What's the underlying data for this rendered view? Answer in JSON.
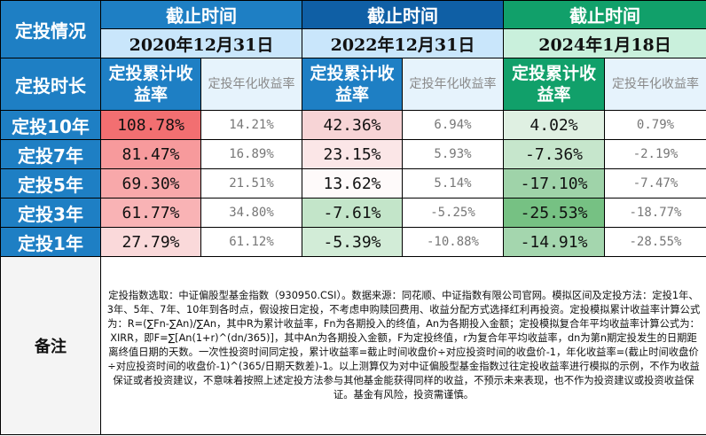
{
  "header": {
    "corner_label": "定投情况",
    "period_label": "截止时间",
    "dates": [
      "2020年12月31日",
      "2022年12月31日",
      "2024年1月18日"
    ]
  },
  "metrics": {
    "row_label": "定投时长",
    "cumulative": "定投累计收益率",
    "annualized": "定投年化收益率"
  },
  "rows": [
    {
      "label": "定投10年",
      "values": [
        "108.78%",
        "14.21%",
        "42.36%",
        "6.94%",
        "4.02%",
        "0.79%"
      ]
    },
    {
      "label": "定投7年",
      "values": [
        "81.47%",
        "16.89%",
        "23.15%",
        "5.93%",
        "-7.36%",
        "-2.19%"
      ]
    },
    {
      "label": "定投5年",
      "values": [
        "69.30%",
        "21.51%",
        "13.62%",
        "5.14%",
        "-17.10%",
        "-7.47%"
      ]
    },
    {
      "label": "定投3年",
      "values": [
        "61.77%",
        "34.80%",
        "-7.61%",
        "-5.25%",
        "-25.53%",
        "-18.77%"
      ]
    },
    {
      "label": "定投1年",
      "values": [
        "27.79%",
        "61.12%",
        "-5.39%",
        "-10.88%",
        "-14.91%",
        "-28.55%"
      ]
    }
  ],
  "cell_colors": [
    [
      "#f26f71",
      "#ffffff",
      "#f7d4d6",
      "#ffffff",
      "#dff0e2",
      "#ffffff"
    ],
    [
      "#f79a9c",
      "#ffffff",
      "#fbe6e7",
      "#ffffff",
      "#c6e6cc",
      "#ffffff"
    ],
    [
      "#f8a8aa",
      "#ffffff",
      "#fefafa",
      "#ffffff",
      "#9fd3a9",
      "#ffffff"
    ],
    [
      "#f9b3b5",
      "#ffffff",
      "#c3e5c9",
      "#ffffff",
      "#76c183",
      "#ffffff"
    ],
    [
      "#fad9da",
      "#ffffff",
      "#d2ecd7",
      "#ffffff",
      "#a4d6ae",
      "#ffffff"
    ]
  ],
  "notes": {
    "label": "备注",
    "text": "定投指数选取：中证偏股型基金指数（930950.CSI）。数据来源：同花顺、中证指数有限公司官网。模拟区间及定投方法：定投1年、3年、5年、7年、10年到各时点，假设按日定投，不考虑申购赎回费用、收益分配方式选择红利再投资。定投模拟累计收益率计算公式为：R=(∑Fn-∑An)/∑An，其中R为累计收益率，Fn为各期投入的终值，An为各期投入金额；定投模拟复合年平均收益率计算公式为：XIRR，即F=∑[An(1+r)^(dn/365)]，其中An为各期投入金额，F为定投终值，r为复合年平均收益率，dn为第n期定投发生的日期距离终值日期的天数。一次性投资时间同定投，累计收益率=截止时间收盘价÷对应投资时间的收盘价-1，年化收益率=(截止时间收盘价÷对应投资时间的收盘价-1)^(365/日期天数差)-1。以上测算仅为对中证偏股型基金指数过往定投收益率进行模拟的示例，不作为收益保证或者投资建议，不意味着按照上述定投方法参与其他基金能获得同样的收益，不预示未来表现，也不作为投资建议或投资收益保证。基金有风险，投资需谨慎。"
  }
}
